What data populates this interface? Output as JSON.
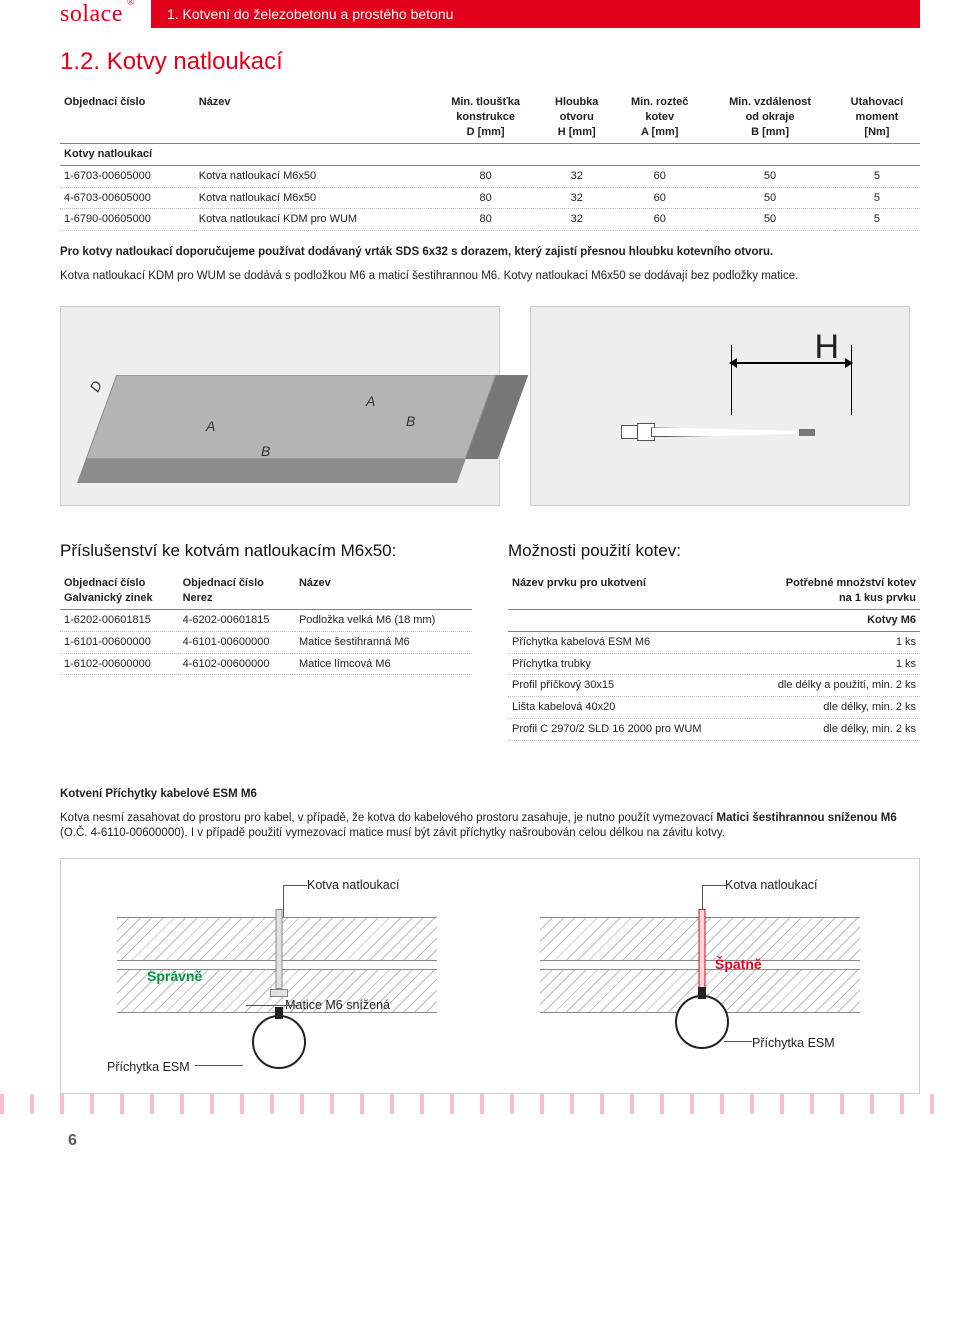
{
  "brand": "solace",
  "chapter_heading": "1. Kotvení do železobetonu a prostého betonu",
  "section_title": "1.2. Kotvy natloukací",
  "page_number": "6",
  "anchors_table": {
    "columns": [
      "Objednací číslo",
      "Název",
      "Min. tloušťka konstrukce D [mm]",
      "Hloubka otvoru H [mm]",
      "Min. rozteč kotev A [mm]",
      "Min. vzdálenost od okraje B [mm]",
      "Utahovací moment [Nm]"
    ],
    "col_align": [
      "left",
      "left",
      "center",
      "center",
      "center",
      "center",
      "center"
    ],
    "category_label": "Kotvy natloukací",
    "rows": [
      [
        "1-6703-00605000",
        "Kotva natloukací M6x50",
        "80",
        "32",
        "60",
        "50",
        "5"
      ],
      [
        "4-6703-00605000",
        "Kotva natloukací M6x50",
        "80",
        "32",
        "60",
        "50",
        "5"
      ],
      [
        "1-6790-00605000",
        "Kotva natloukací KDM pro WUM",
        "80",
        "32",
        "60",
        "50",
        "5"
      ]
    ]
  },
  "para1": "Pro kotvy natloukací doporučujeme používat dodávaný vrták SDS 6x32 s dorazem, který zajistí přesnou hloubku kotevního otvoru.",
  "para2": "Kotva natloukací KDM pro WUM se dodává s podložkou M6 a maticí šestihrannou M6. Kotvy natloukací M6x50 se dodávají bez podložky matice.",
  "diagram_labels": {
    "D": "D",
    "A": "A",
    "B": "B",
    "H": "H"
  },
  "accessories": {
    "heading": "Příslušenství ke kotvám natloukacím M6x50:",
    "columns": [
      "Objednací číslo Galvanický zinek",
      "Objednací číslo Nerez",
      "Název"
    ],
    "rows": [
      [
        "1-6202-00601815",
        "4-6202-00601815",
        "Podložka velká M6 (18 mm)"
      ],
      [
        "1-6101-00600000",
        "4-6101-00600000",
        "Matice šestihranná M6"
      ],
      [
        "1-6102-00600000",
        "4-6102-00600000",
        "Matice límcová M6"
      ]
    ]
  },
  "usage": {
    "heading": "Možnosti použití kotev:",
    "columns": [
      "Název prvku pro ukotvení",
      "Potřebné množství kotev na 1 kus prvku"
    ],
    "category_label": "Kotvy M6",
    "rows": [
      [
        "Příchytka kabelová ESM M6",
        "1 ks"
      ],
      [
        "Příchytka trubky",
        "1 ks"
      ],
      [
        "Profil příčkový 30x15",
        "dle délky a použití, min. 2 ks"
      ],
      [
        "Lišta kabelová 40x20",
        "dle délky, min. 2 ks"
      ],
      [
        "Profil C 2970/2 SLD 16 2000 pro WUM",
        "dle délky, min. 2 ks"
      ]
    ]
  },
  "mounting_note_heading": "Kotvení Příchytky kabelové ESM M6",
  "mounting_note_body_pre": "Kotva nesmí zasahovat do prostoru pro kabel, v případě, že kotva do kabelového prostoru zasahuje, je nutno použít vymezovací ",
  "mounting_note_bold": "Matici šestihrannou sníženou M6",
  "mounting_note_body_post": " (O.Č. 4-6110-00600000). I v případě použití vymezovací matice musí být závit příchytky našroubován celou délkou na závitu kotvy.",
  "mounting_diagram": {
    "kotva": "Kotva natloukací",
    "spravne": "Správně",
    "spatne": "Špatně",
    "matice": "Matice M6 snížená",
    "prichytka": "Příchytka ESM"
  },
  "colors": {
    "brand": "#e2001a",
    "ok": "#009640",
    "text": "#231f20",
    "rule": "#808080",
    "dotted": "#bfbfbf",
    "diagram_bg": "#eeeeee"
  }
}
